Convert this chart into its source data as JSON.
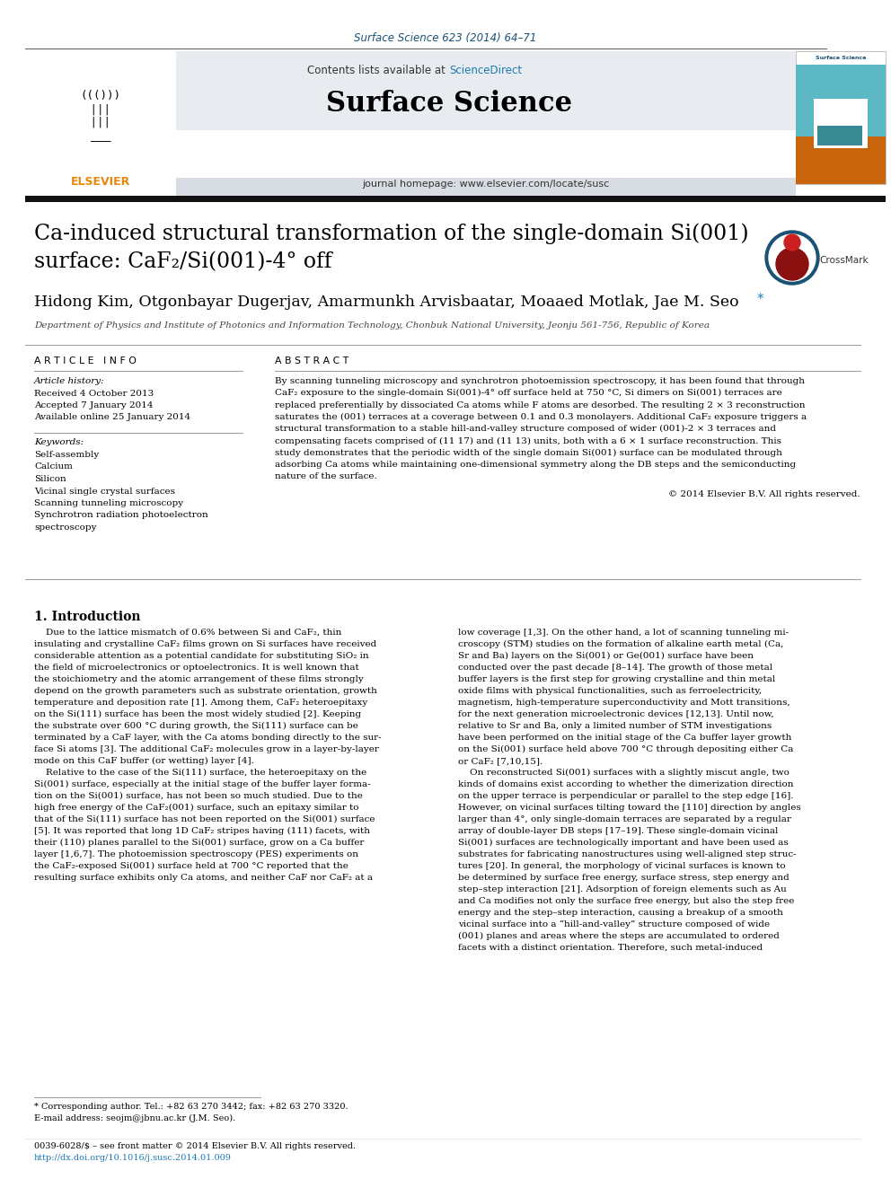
{
  "journal_ref": "Surface Science 623 (2014) 64–71",
  "journal_ref_color": "#1a5276",
  "header_bg": "#e8ecf0",
  "contents_text": "Contents lists available at ",
  "sciencedirect_text": "ScienceDirect",
  "sciencedirect_color": "#1a7ab5",
  "journal_name": "Surface Science",
  "journal_url": "journal homepage: www.elsevier.com/locate/susc",
  "paper_title_line1": "Ca-induced structural transformation of the single-domain Si(001)",
  "paper_title_line2": "surface: CaF₂/Si(001)-4° off",
  "authors": "Hidong Kim, Otgonbayar Dugerjav, Amarmunkh Arvisbaatar, Moaaed Motlak, Jae M. Seo",
  "affiliation": "Department of Physics and Institute of Photonics and Information Technology, Chonbuk National University, Jeonju 561-756, Republic of Korea",
  "article_info_label": "A R T I C L E   I N F O",
  "abstract_label": "A B S T R A C T",
  "article_history_label": "Article history:",
  "received": "Received 4 October 2013",
  "accepted": "Accepted 7 January 2014",
  "available": "Available online 25 January 2014",
  "keywords_label": "Keywords:",
  "keywords": [
    "Self-assembly",
    "Calcium",
    "Silicon",
    "Vicinal single crystal surfaces",
    "Scanning tunneling microscopy",
    "Synchrotron radiation photoelectron",
    "spectroscopy"
  ],
  "copyright": "© 2014 Elsevier B.V. All rights reserved.",
  "intro_heading": "1. Introduction",
  "footnote_line": "0039-6028/$ – see front matter © 2014 Elsevier B.V. All rights reserved.",
  "doi_line": "http://dx.doi.org/10.1016/j.susc.2014.01.009",
  "footnote_star": "* Corresponding author. Tel.: +82 63 270 3442; fax: +82 63 270 3320.",
  "footnote_email": "E-mail address: seojm@jbnu.ac.kr (J.M. Seo)."
}
